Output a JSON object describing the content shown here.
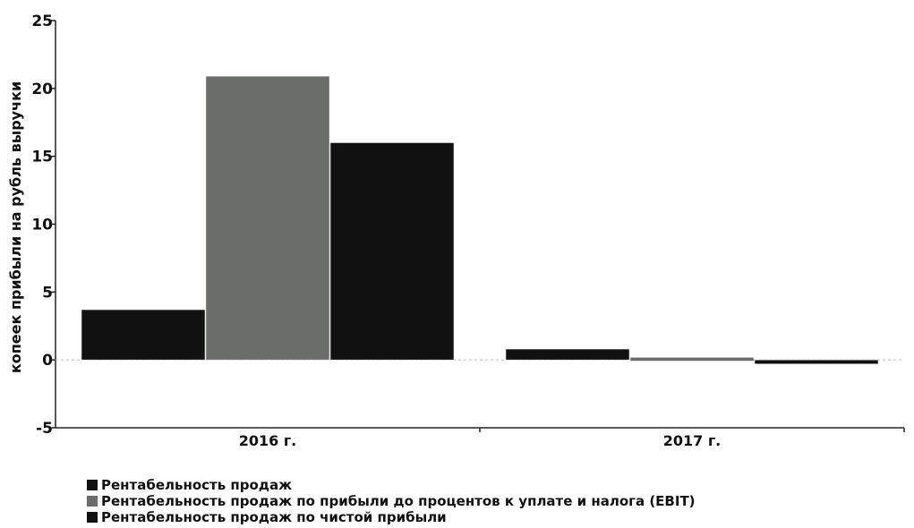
{
  "chart_data": {
    "type": "bar",
    "title": "",
    "xlabel": "",
    "ylabel": "копеек прибыли на рубль выручки",
    "ylim": [
      -5,
      25
    ],
    "yticks": [
      25,
      20,
      15,
      10,
      5,
      0,
      -5
    ],
    "grid": false,
    "legend_position": "bottom-left",
    "categories": [
      "2016 г.",
      "2017 г."
    ],
    "series": [
      {
        "name": "Рентабельность продаж",
        "color": "#111111",
        "values": [
          3.7,
          0.8
        ]
      },
      {
        "name": "Рентабельность продаж по прибыли до процентов к уплате и налога (EBIT)",
        "color": "#6b6d6b",
        "values": [
          20.9,
          0.1
        ]
      },
      {
        "name": "Рентабельность продаж по чистой прибыли",
        "color": "#111111",
        "values": [
          16.0,
          -0.3
        ]
      }
    ]
  }
}
